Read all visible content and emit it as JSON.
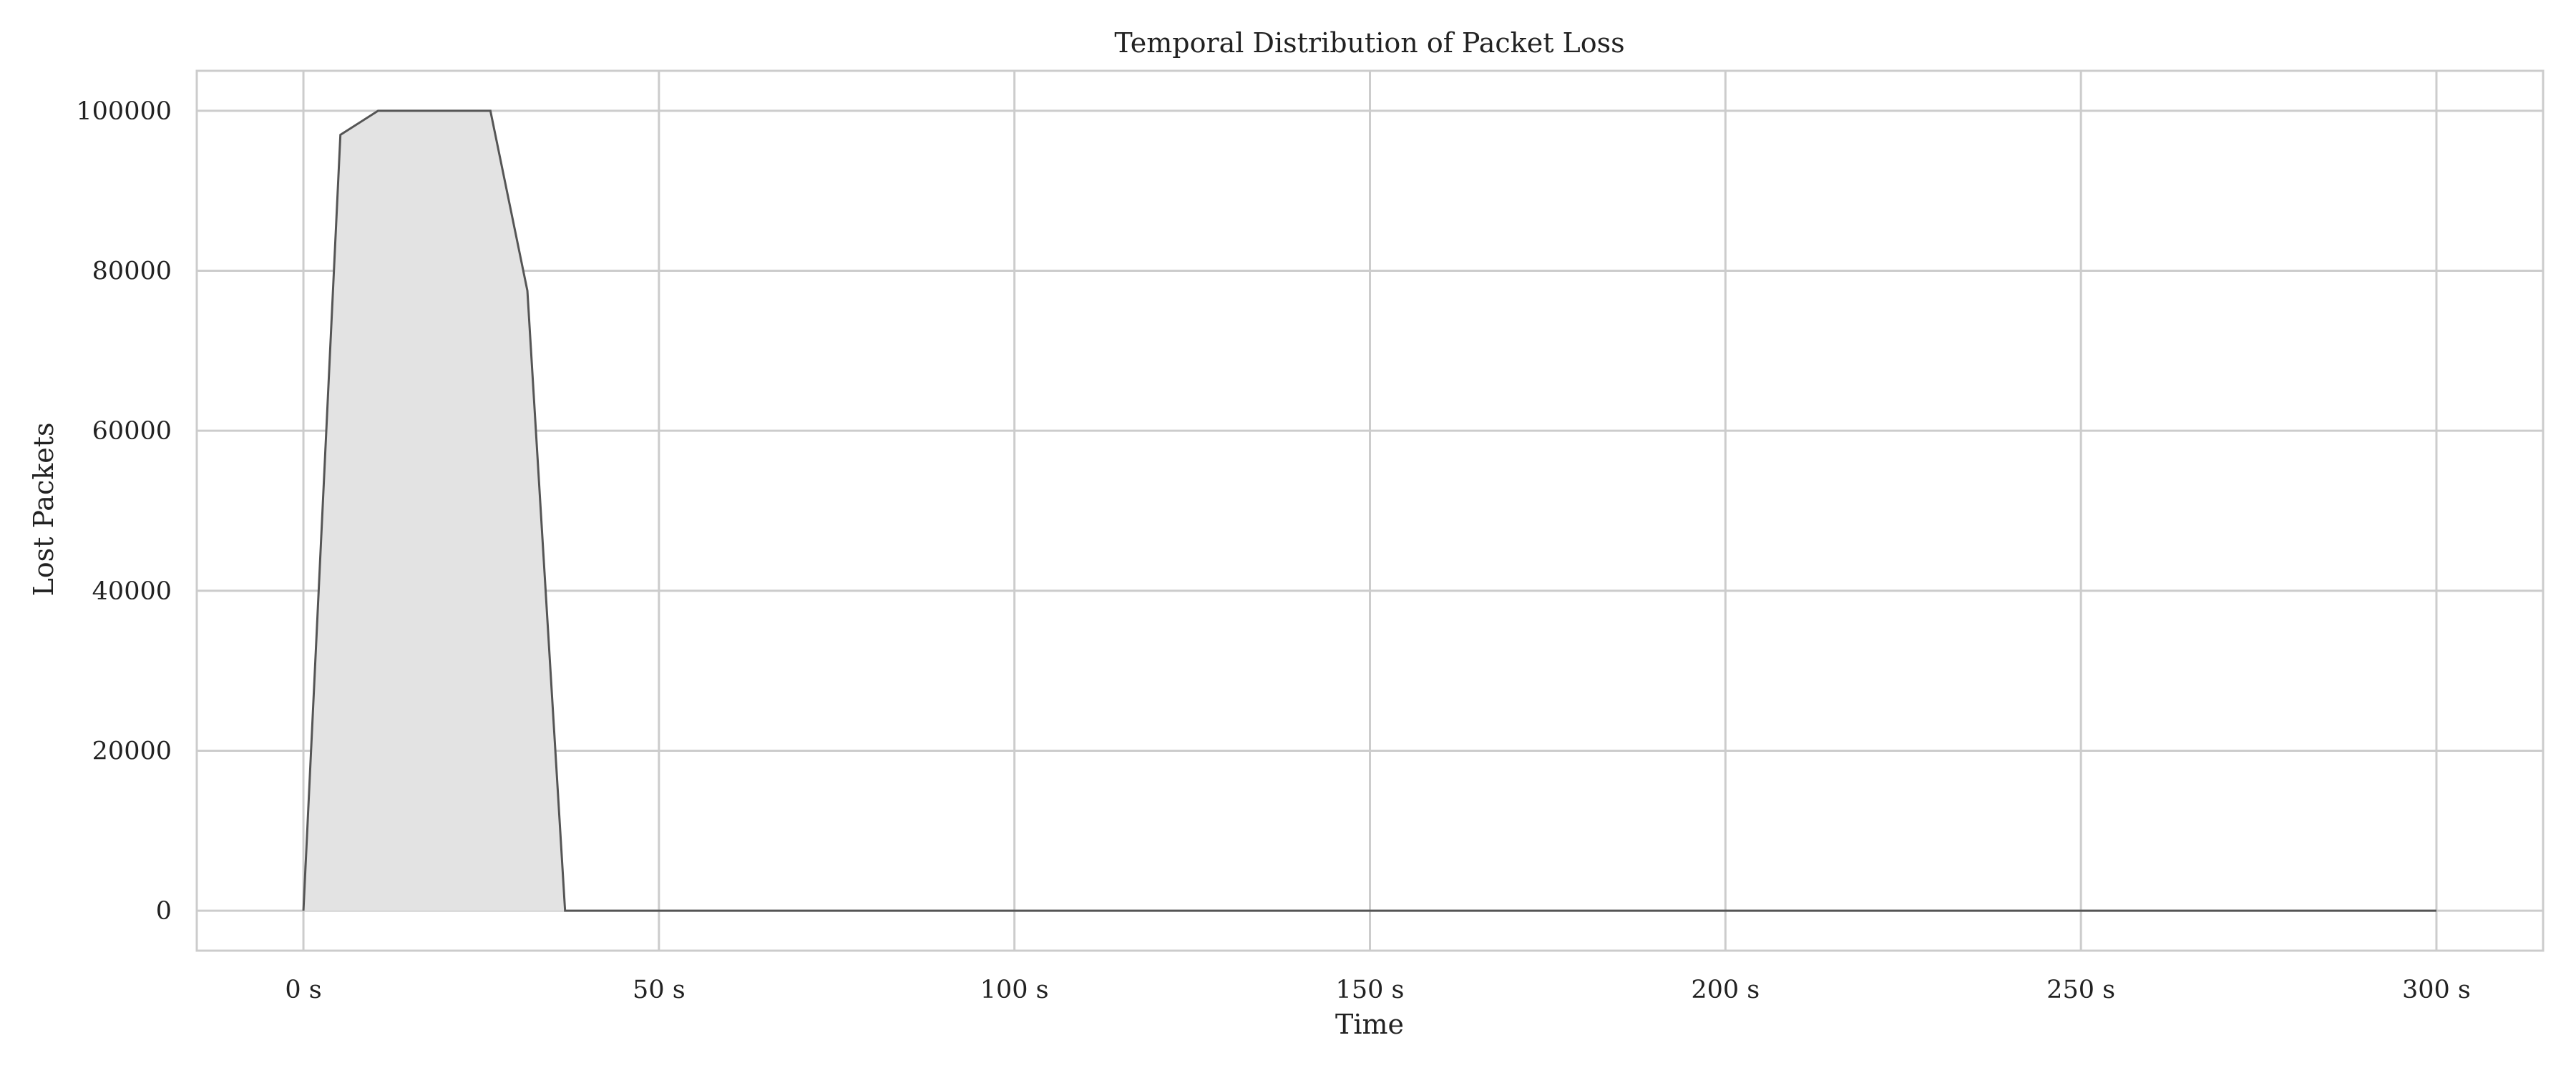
{
  "chart_data": {
    "type": "area",
    "title": "Temporal Distribution of Packet Loss",
    "xlabel": "Time",
    "ylabel": "Lost Packets",
    "xlim": [
      -15,
      315
    ],
    "ylim": [
      -5000,
      105000
    ],
    "x_ticks": [
      0,
      50,
      100,
      150,
      200,
      250,
      300
    ],
    "x_tick_labels": [
      "0 s",
      "50 s",
      "100 s",
      "150 s",
      "200 s",
      "250 s",
      "300 s"
    ],
    "y_ticks": [
      0,
      20000,
      40000,
      60000,
      80000,
      100000
    ],
    "y_tick_labels": [
      "0",
      "20000",
      "40000",
      "60000",
      "80000",
      "100000"
    ],
    "grid": true,
    "colors": {
      "fill": "#e3e3e3",
      "line": "#555555",
      "grid": "#cccccc",
      "frame": "#cccccc"
    },
    "series": [
      {
        "x": [
          0,
          5.2,
          10.5,
          26.3,
          31.5,
          36.8,
          50,
          100,
          150,
          200,
          250,
          300
        ],
        "y": [
          0,
          97000,
          100000,
          100000,
          77500,
          0,
          0,
          0,
          0,
          0,
          0,
          0
        ]
      }
    ]
  }
}
